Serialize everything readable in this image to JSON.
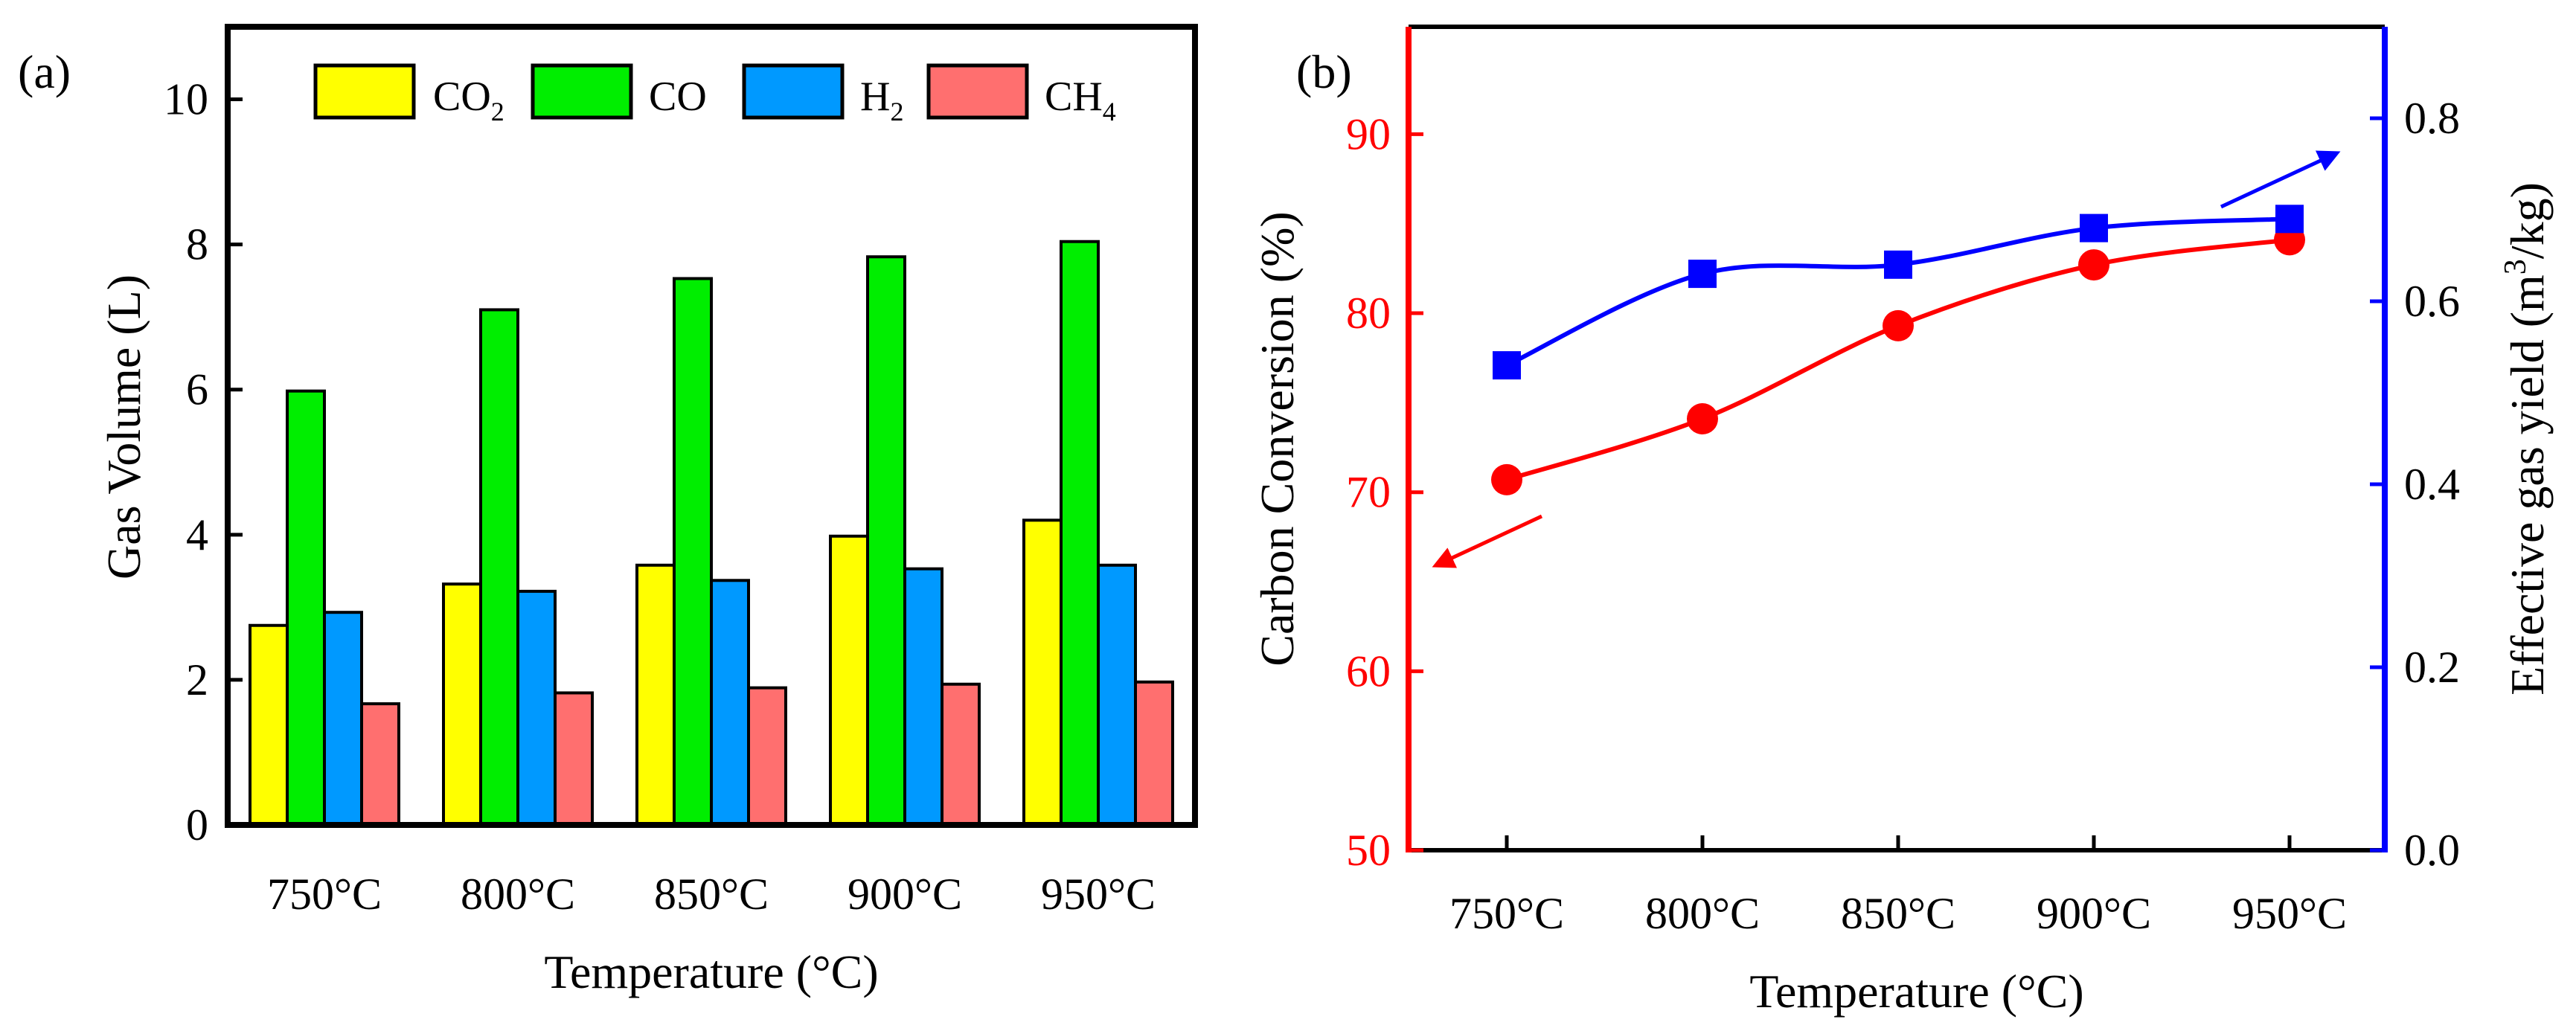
{
  "colors": {
    "co2": "#ffff00",
    "co": "#00ee00",
    "h2": "#0099ff",
    "ch4": "#ff6f6f",
    "red_axis": "#ff0000",
    "blue_axis": "#0000ff"
  },
  "chart_data": [
    {
      "type": "bar",
      "panel_label": "(a)",
      "categories": [
        "750°C",
        "800°C",
        "850°C",
        "900°C",
        "950°C"
      ],
      "series": [
        {
          "name": "CO₂",
          "values": [
            2.75,
            3.32,
            3.58,
            3.98,
            4.2
          ]
        },
        {
          "name": "CO",
          "values": [
            5.98,
            7.1,
            7.53,
            7.83,
            8.04
          ]
        },
        {
          "name": "H₂",
          "values": [
            2.93,
            3.22,
            3.37,
            3.53,
            3.58
          ]
        },
        {
          "name": "CH₄",
          "values": [
            1.67,
            1.82,
            1.89,
            1.94,
            1.97
          ]
        }
      ],
      "legend": [
        {
          "base": "CO",
          "sub": "2"
        },
        {
          "base": "CO",
          "sub": ""
        },
        {
          "base": "H",
          "sub": "2"
        },
        {
          "base": "CH",
          "sub": "4"
        }
      ],
      "xlabel": "Temperature (°C)",
      "ylabel": "Gas Volume (L)",
      "ylim": [
        0,
        11
      ],
      "yticks": [
        "0",
        "2",
        "4",
        "6",
        "8",
        "10"
      ]
    },
    {
      "type": "line",
      "panel_label": "(b)",
      "categories": [
        "750°C",
        "800°C",
        "850°C",
        "900°C",
        "950°C"
      ],
      "series": [
        {
          "name": "Carbon Conversion",
          "axis": "left",
          "marker": "circle",
          "values": [
            70.7,
            74.1,
            79.3,
            82.7,
            84.1
          ]
        },
        {
          "name": "Effective gas yield",
          "axis": "right",
          "marker": "square",
          "values": [
            0.53,
            0.63,
            0.64,
            0.68,
            0.69
          ]
        }
      ],
      "xlabel": "Temperature (°C)",
      "ylabel_left": "Carbon Conversion (%)",
      "ylabel_right": {
        "pre": "Effective gas yield (m",
        "sup": "3",
        "post": "/kg)"
      },
      "ylim_left": [
        50,
        96
      ],
      "ylim_right": [
        0,
        0.9
      ],
      "yticks_left": [
        "50",
        "60",
        "70",
        "80",
        "90"
      ],
      "yticks_right": [
        "0.0",
        "0.2",
        "0.4",
        "0.6",
        "0.8"
      ]
    }
  ]
}
